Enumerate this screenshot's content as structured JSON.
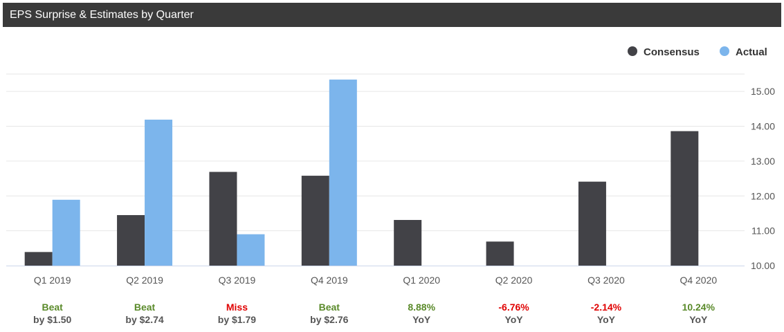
{
  "header": {
    "title": "EPS Surprise & Estimates by Quarter"
  },
  "colors": {
    "consensus": "#424247",
    "actual": "#7cb5ec",
    "beat": "#5a8a2a",
    "miss": "#e00000",
    "grid": "#e6e6e6",
    "axis": "#ccd6eb"
  },
  "chart_data": {
    "type": "bar",
    "title": "EPS Surprise & Estimates by Quarter",
    "categories": [
      "Q1 2019",
      "Q2 2019",
      "Q3 2019",
      "Q4 2019",
      "Q1 2020",
      "Q2 2020",
      "Q3 2020",
      "Q4 2020"
    ],
    "series": [
      {
        "name": "Consensus",
        "values": [
          10.39,
          11.45,
          12.69,
          12.58,
          11.31,
          10.69,
          12.41,
          13.86
        ]
      },
      {
        "name": "Actual",
        "values": [
          11.89,
          14.19,
          10.9,
          15.34,
          null,
          null,
          null,
          null
        ]
      }
    ],
    "ylim": [
      10,
      15.5
    ],
    "yticks": [
      "10.00",
      "11.00",
      "12.00",
      "13.00",
      "14.00",
      "15.00"
    ],
    "ytick_values": [
      10,
      11,
      12,
      13,
      14,
      15
    ],
    "y_axis_side": "right",
    "grid": true,
    "legend_position": "top-right",
    "results": [
      {
        "top": "Beat",
        "bottom": "by $1.50",
        "status": "beat"
      },
      {
        "top": "Beat",
        "bottom": "by $2.74",
        "status": "beat"
      },
      {
        "top": "Miss",
        "bottom": "by $1.79",
        "status": "miss"
      },
      {
        "top": "Beat",
        "bottom": "by $2.76",
        "status": "beat"
      },
      {
        "top": "8.88%",
        "bottom": "YoY",
        "status": "beat"
      },
      {
        "top": "-6.76%",
        "bottom": "YoY",
        "status": "miss"
      },
      {
        "top": "-2.14%",
        "bottom": "YoY",
        "status": "miss"
      },
      {
        "top": "10.24%",
        "bottom": "YoY",
        "status": "beat"
      }
    ]
  }
}
